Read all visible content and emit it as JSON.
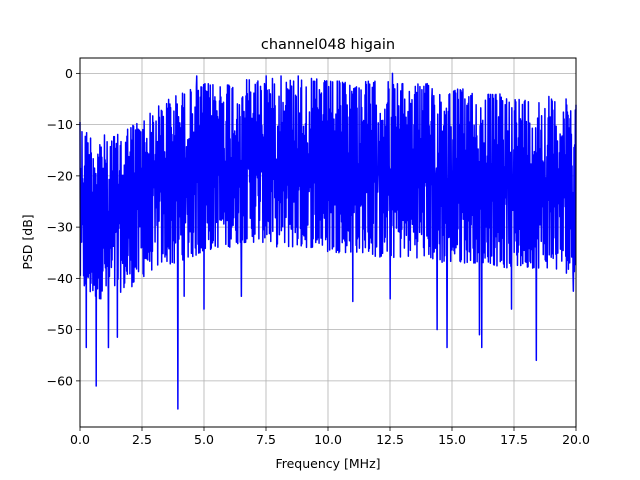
{
  "figure": {
    "title": "channel048 higain",
    "xlabel": "Frequency [MHz]",
    "ylabel": "PSD [dB]"
  },
  "chart_data": {
    "type": "line",
    "title": "channel048 higain",
    "xlabel": "Frequency [MHz]",
    "ylabel": "PSD [dB]",
    "xlim": [
      0,
      20
    ],
    "ylim": [
      -69,
      3
    ],
    "grid": true,
    "legend": "none",
    "x_ticks": [
      "0.0",
      "2.5",
      "5.0",
      "7.5",
      "10.0",
      "12.5",
      "15.0",
      "17.5",
      "20.0"
    ],
    "y_ticks": [
      "0",
      "−10",
      "−20",
      "−30",
      "−40",
      "−50",
      "−60"
    ],
    "series": [
      {
        "color": "#0000ff",
        "x": [
          0.0,
          0.5,
          1.0,
          1.5,
          2.0,
          2.5,
          3.0,
          3.5,
          4.0,
          4.5,
          5.0,
          5.5,
          6.0,
          6.5,
          7.0,
          7.5,
          8.0,
          8.5,
          9.0,
          9.5,
          10.0,
          10.5,
          11.0,
          11.5,
          12.0,
          12.5,
          13.0,
          13.5,
          14.0,
          14.5,
          15.0,
          15.5,
          16.0,
          16.5,
          17.0,
          17.5,
          18.0,
          18.5,
          19.0,
          19.5,
          20.0
        ],
        "upper_envelope": [
          -10,
          -12,
          -12,
          -12,
          -10,
          -9,
          -7,
          -5,
          -4,
          -3,
          -2,
          -2,
          -1.5,
          -1,
          -1,
          -1,
          -1,
          -1,
          -1,
          -1,
          -1.5,
          -1.5,
          -1.5,
          -1.5,
          -1.5,
          -1.5,
          -2,
          -2,
          -2,
          -3,
          -3,
          -3,
          -4,
          -4,
          -4,
          -4.5,
          -5,
          -5,
          -5,
          -5,
          -5
        ],
        "lower_envelope": [
          -42,
          -44,
          -44,
          -43,
          -42,
          -40,
          -38,
          -37,
          -38,
          -36,
          -35,
          -34,
          -34,
          -33,
          -33,
          -33,
          -34,
          -34,
          -34,
          -34,
          -35,
          -35,
          -35,
          -35,
          -36,
          -36,
          -36,
          -36,
          -36,
          -37,
          -37,
          -37,
          -37,
          -37,
          -38,
          -38,
          -38,
          -38,
          -38,
          -39,
          -39
        ],
        "peaks": [
          [
            0.0,
            -9.5
          ],
          [
            4.7,
            -0.5
          ],
          [
            7.5,
            -0.5
          ],
          [
            8.1,
            -0.5
          ],
          [
            8.8,
            -0.5
          ],
          [
            12.6,
            0.0
          ],
          [
            14.2,
            -3.0
          ],
          [
            18.9,
            -4.5
          ]
        ],
        "dips": [
          [
            0.25,
            -53.5
          ],
          [
            0.65,
            -61.0
          ],
          [
            1.15,
            -53.5
          ],
          [
            1.5,
            -51.5
          ],
          [
            3.95,
            -65.5
          ],
          [
            4.2,
            -43.5
          ],
          [
            5.0,
            -46.0
          ],
          [
            6.5,
            -43.5
          ],
          [
            11.0,
            -44.5
          ],
          [
            12.5,
            -44.0
          ],
          [
            14.4,
            -50.0
          ],
          [
            14.8,
            -53.5
          ],
          [
            16.1,
            -51.0
          ],
          [
            16.2,
            -53.5
          ],
          [
            17.4,
            -46.0
          ],
          [
            18.4,
            -56.0
          ],
          [
            19.9,
            -42.5
          ]
        ]
      }
    ]
  }
}
